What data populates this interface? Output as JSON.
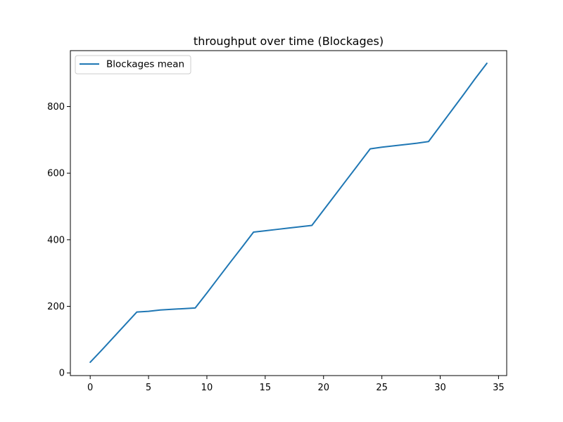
{
  "chart_data": {
    "type": "line",
    "title": "throughput over time (Blockages)",
    "xlabel": "",
    "ylabel": "",
    "xlim": [
      -1.7,
      35.7
    ],
    "ylim": [
      -8,
      968
    ],
    "xticks": [
      0,
      5,
      10,
      15,
      20,
      25,
      30,
      35
    ],
    "yticks": [
      0,
      200,
      400,
      600,
      800
    ],
    "grid": false,
    "legend_position": "top-left",
    "series": [
      {
        "name": "Blockages mean",
        "color": "#1f77b4",
        "x": [
          0,
          1,
          2,
          3,
          4,
          5,
          6,
          7,
          8,
          9,
          10,
          11,
          12,
          13,
          14,
          15,
          16,
          17,
          18,
          19,
          20,
          21,
          22,
          23,
          24,
          25,
          26,
          27,
          28,
          29,
          30,
          31,
          32,
          33,
          34
        ],
        "y": [
          32,
          69,
          107,
          145,
          183,
          185,
          189,
          191,
          193,
          195,
          240,
          286,
          332,
          377,
          423,
          427,
          431,
          435,
          439,
          443,
          489,
          535,
          581,
          627,
          673,
          678,
          682,
          686,
          690,
          695,
          742,
          789,
          836,
          884,
          930
        ]
      }
    ]
  }
}
